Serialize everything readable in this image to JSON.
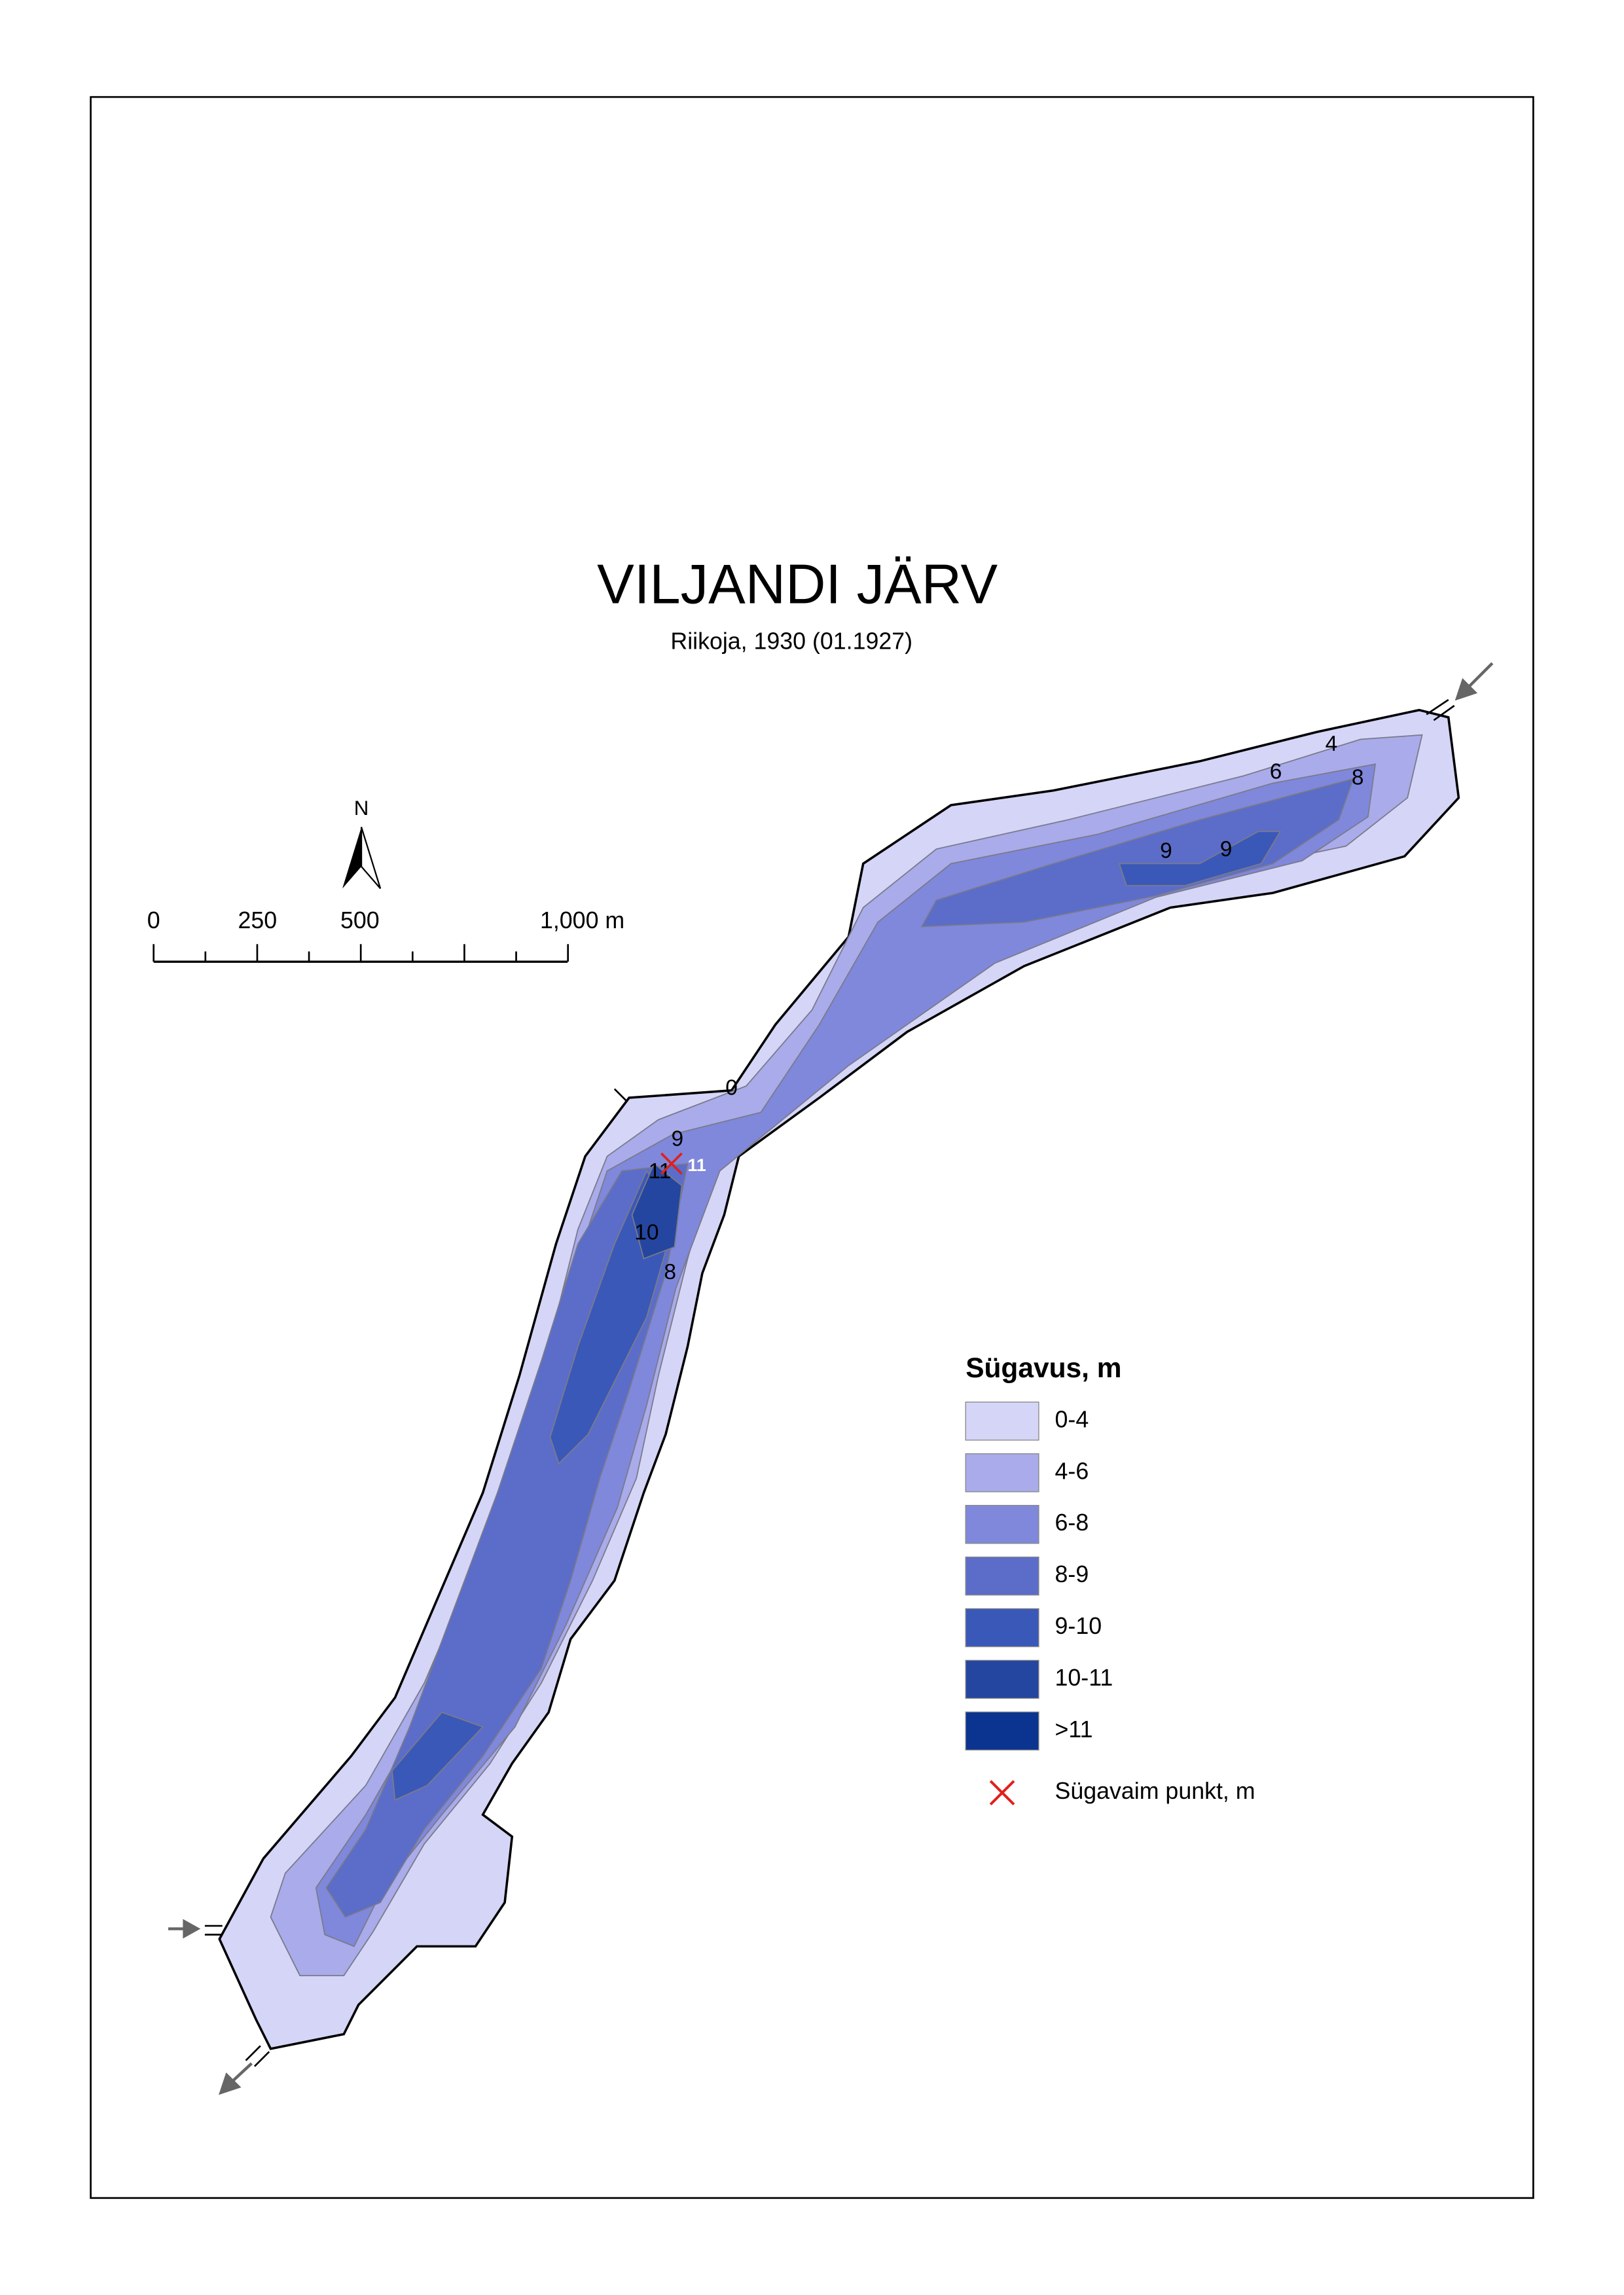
{
  "title": "VILJANDI JÄRV",
  "subtitle": "Riikoja, 1930 (01.1927)",
  "north_label": "N",
  "scale_bar": {
    "labels": [
      "0",
      "250",
      "500",
      "1,000 m"
    ]
  },
  "legend": {
    "title": "Sügavus, m",
    "items": [
      {
        "label": "0-4",
        "color": "#d5d5f8"
      },
      {
        "label": "4-6",
        "color": "#a9abea"
      },
      {
        "label": "6-8",
        "color": "#8088dc"
      },
      {
        "label": "8-9",
        "color": "#5b6dc9"
      },
      {
        "label": "9-10",
        "color": "#3a58b8"
      },
      {
        "label": "10-11",
        "color": "#2446a0"
      },
      {
        "label": ">11",
        "color": "#0a3490"
      }
    ],
    "deepest_label": "Sügavaim punkt, m"
  },
  "depth_labels": [
    "4",
    "6",
    "8",
    "9",
    "9",
    "0",
    "9",
    "11",
    "10",
    "8"
  ],
  "deepest_point": "11"
}
